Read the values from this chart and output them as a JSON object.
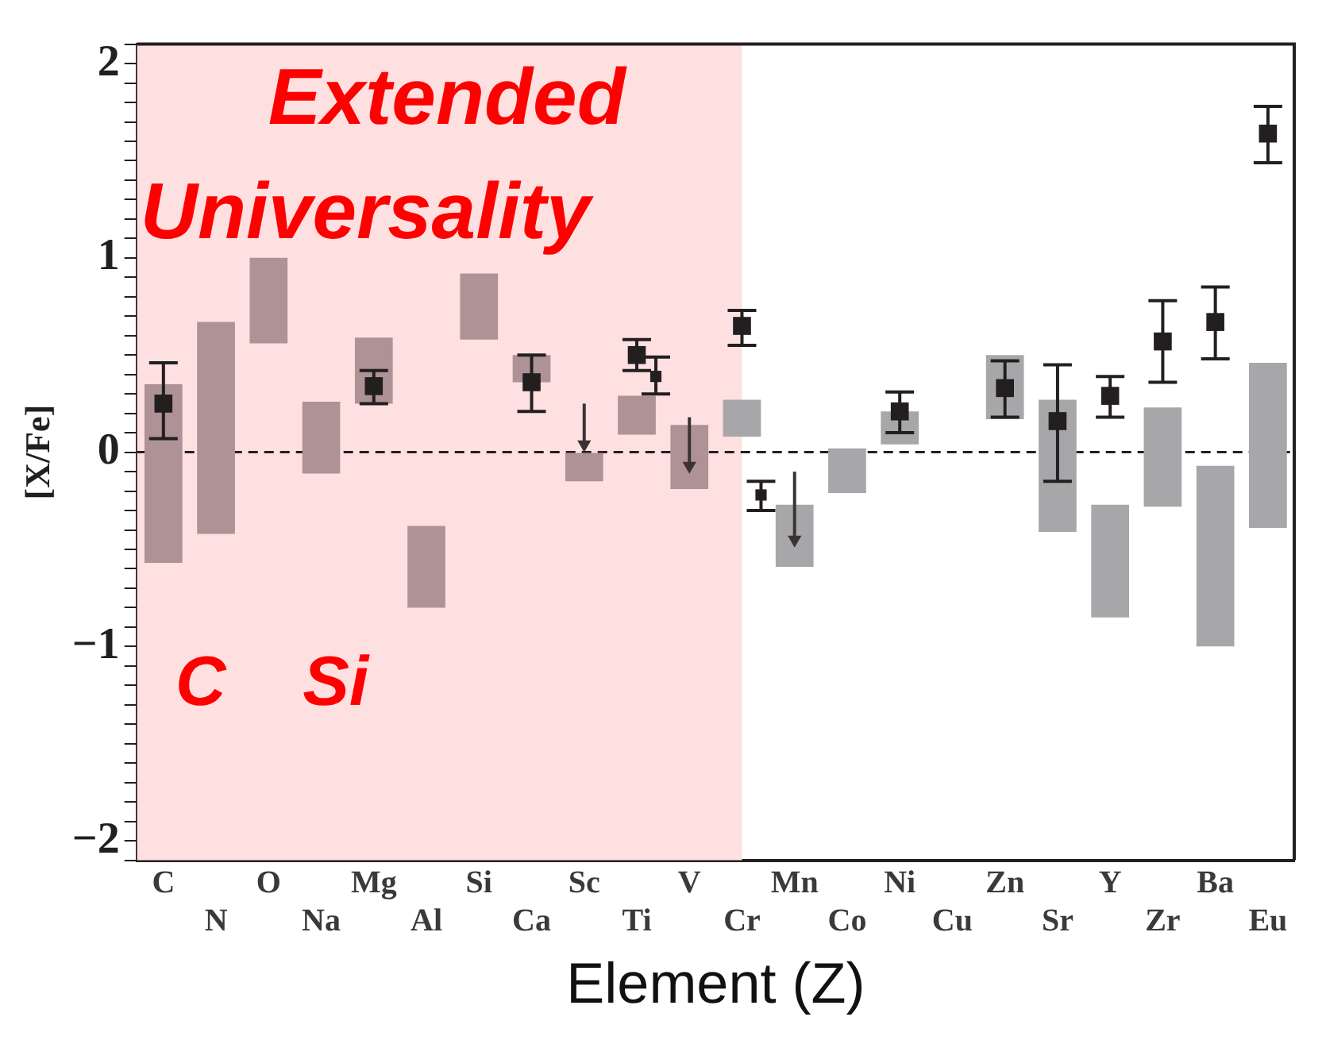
{
  "chart_data": {
    "type": "bar",
    "categories": [
      "C",
      "N",
      "O",
      "Na",
      "Mg",
      "Al",
      "Si",
      "Ca",
      "Sc",
      "Ti",
      "V",
      "Cr",
      "Mn",
      "Co",
      "Ni",
      "Cu",
      "Zn",
      "Sr",
      "Y",
      "Zr",
      "Ba",
      "Eu"
    ],
    "xlabel": "Element (Z)",
    "ylabel": "[X/Fe]",
    "series": [
      {
        "base": [
          -0.57,
          -0.42,
          0.56,
          -0.11,
          0.25,
          -0.8,
          0.58,
          0.36,
          -0.15,
          0.09,
          -0.19,
          0.08,
          -0.59,
          -0.21,
          0.04,
          null,
          0.17,
          -0.41,
          -0.85,
          -0.28,
          -1.0,
          -0.39
        ],
        "values": [
          0.92,
          1.09,
          0.44,
          0.37,
          0.34,
          0.42,
          0.34,
          0.14,
          0.15,
          0.2,
          0.33,
          0.19,
          0.32,
          0.23,
          0.17,
          null,
          0.33,
          0.68,
          0.58,
          0.51,
          0.93,
          0.85
        ],
        "colors": [
          "#ae9295",
          "#ae9295",
          "#ae9295",
          "#ae9295",
          "#ae9295",
          "#ae9295",
          "#ae9295",
          "#ae9295",
          "#ae9295",
          "#ae9295",
          "#ae9295",
          "#a7a7aa",
          "#a7a7aa",
          "#a7a7aa",
          "#a7a7aa",
          "#a7a7aa",
          "#a7a7aa",
          "#a7a7aa",
          "#a7a7aa",
          "#a7a7aa",
          "#a7a7aa",
          "#a7a7aa"
        ]
      },
      {
        "type": "scatter",
        "marker": "square",
        "color": "#231f20",
        "x": [
          "C",
          "Mg",
          "Ca",
          "Ti",
          "Cr",
          "Ni",
          "Zn",
          "Sr",
          "Y",
          "Zr",
          "Ba",
          "Eu"
        ],
        "values": [
          0.25,
          0.34,
          0.36,
          0.5,
          0.65,
          0.21,
          0.33,
          0.16,
          0.29,
          0.57,
          0.67,
          1.64
        ],
        "errors": [
          [
            0.07,
            0.46
          ],
          [
            0.25,
            0.42
          ],
          [
            0.21,
            0.5
          ],
          [
            0.42,
            0.58
          ],
          [
            0.55,
            0.73
          ],
          [
            0.1,
            0.31
          ],
          [
            0.18,
            0.47
          ],
          [
            -0.15,
            0.45
          ],
          [
            0.18,
            0.39
          ],
          [
            0.36,
            0.78
          ],
          [
            0.48,
            0.85
          ],
          [
            1.49,
            1.78
          ]
        ]
      },
      {
        "type": "scatter",
        "marker": "square",
        "color": "#231f20",
        "x": [
          "Ti",
          "Cr"
        ],
        "values": [
          0.39,
          -0.22
        ],
        "errors": [
          [
            0.3,
            0.49
          ],
          [
            -0.3,
            -0.15
          ]
        ]
      },
      {
        "type": "scatter",
        "marker": "triangle",
        "color": "#3a3335",
        "x": [
          "Sc",
          "V",
          "Mn"
        ],
        "values": [
          0.04,
          -0.07,
          -0.45
        ],
        "errors": [
          [
            0.04,
            0.25
          ],
          [
            -0.07,
            0.18
          ],
          [
            -0.45,
            -0.1
          ]
        ]
      }
    ],
    "ylim": [
      -2.1,
      2.1
    ],
    "yticks": [
      {
        "value": -2.1,
        "label": null
      },
      -2,
      {
        "value": -1.9,
        "label": null
      },
      {
        "value": -1.8,
        "label": null
      },
      {
        "value": -1.7,
        "label": null
      },
      {
        "value": -1.6,
        "label": null
      },
      {
        "value": -1.5,
        "label": null
      },
      {
        "value": -1.4,
        "label": null
      },
      {
        "value": -1.3,
        "label": null
      },
      {
        "value": -1.2,
        "label": null
      },
      {
        "value": -1.1,
        "label": null
      },
      -1,
      {
        "value": -0.9,
        "label": null
      },
      {
        "value": -0.8,
        "label": null
      },
      {
        "value": -0.7,
        "label": null
      },
      {
        "value": -0.6,
        "label": null
      },
      {
        "value": -0.5,
        "label": null
      },
      {
        "value": -0.4,
        "label": null
      },
      {
        "value": -0.3,
        "label": null
      },
      {
        "value": -0.2,
        "label": null
      },
      {
        "value": -0.1,
        "label": null
      },
      0,
      {
        "value": 0.1,
        "label": null
      },
      {
        "value": 0.2,
        "label": null
      },
      {
        "value": 0.3,
        "label": null
      },
      {
        "value": 0.4,
        "label": null
      },
      {
        "value": 0.5,
        "label": null
      },
      {
        "value": 0.6,
        "label": null
      },
      {
        "value": 0.7,
        "label": null
      },
      {
        "value": 0.8,
        "label": null
      },
      {
        "value": 0.9,
        "label": null
      },
      1,
      {
        "value": 1.1,
        "label": null
      },
      {
        "value": 1.2,
        "label": null
      },
      {
        "value": 1.3,
        "label": null
      },
      {
        "value": 1.4,
        "label": null
      },
      {
        "value": 1.5,
        "label": null
      },
      {
        "value": 1.6,
        "label": null
      },
      {
        "value": 1.7,
        "label": null
      },
      {
        "value": 1.8,
        "label": null
      },
      {
        "value": 1.9,
        "label": null
      },
      2,
      {
        "value": 2.1,
        "label": null
      }
    ],
    "ref_lines": [
      {
        "axis": "y",
        "value": 0,
        "line_style": "dashed",
        "color": "#231f20"
      }
    ],
    "bands": [
      {
        "axis": "x",
        "from": "C",
        "to": "Cr",
        "color": "#ffe0e0"
      }
    ],
    "annotations": [
      "Extended Universality",
      "C",
      "Si"
    ],
    "grid": false,
    "legend": false
  }
}
